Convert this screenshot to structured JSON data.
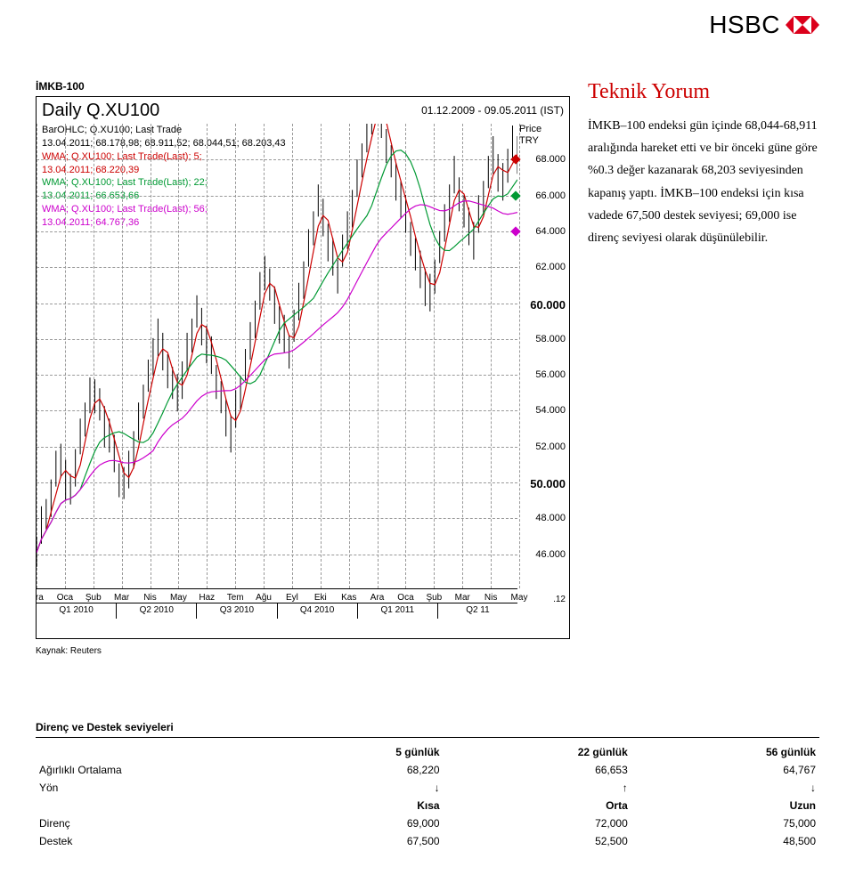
{
  "brand": {
    "name": "HSBC",
    "text_color": "#000000",
    "hex_border": "#db001b",
    "hex_fill": "#db001b"
  },
  "section_header": "İMKB-100",
  "chart": {
    "title": "Daily Q.XU100",
    "date_range": "01.12.2009 - 09.05.2011 (IST)",
    "legend": [
      {
        "color": "#000000",
        "l1": "BarOHLC; Q.XU100; Last Trade",
        "l2": "13.04.2011; 68.178,98; 68.911,52; 68.044,51; 68.203,43"
      },
      {
        "color": "#cc0000",
        "l1": "WMA; Q.XU100; Last Trade(Last);  5;",
        "l2": "13.04.2011; 68.220,39"
      },
      {
        "color": "#009933",
        "l1": "WMA; Q.XU100; Last Trade(Last);  22;",
        "l2": "13.04.2011; 66.653,66"
      },
      {
        "color": "#cc00cc",
        "l1": "WMA; Q.XU100; Last Trade(Last);  56;",
        "l2": "13.04.2011; 64.767,36"
      }
    ],
    "yaxis_label_1": "Price",
    "yaxis_label_2": "TRY",
    "ylim": [
      44000,
      70000
    ],
    "yticks": [
      {
        "v": 68000,
        "label": "68.000",
        "mark": "#cc0000"
      },
      {
        "v": 66000,
        "label": "66.000",
        "mark": "#009933"
      },
      {
        "v": 64000,
        "label": "64.000",
        "mark": "#cc00cc"
      },
      {
        "v": 62000,
        "label": "62.000"
      },
      {
        "v": 60000,
        "label": "60.000",
        "bold": true
      },
      {
        "v": 58000,
        "label": "58.000"
      },
      {
        "v": 56000,
        "label": "56.000"
      },
      {
        "v": 54000,
        "label": "54.000"
      },
      {
        "v": 52000,
        "label": "52.000"
      },
      {
        "v": 50000,
        "label": "50.000",
        "bold": true
      },
      {
        "v": 48000,
        "label": "48.000"
      },
      {
        "v": 46000,
        "label": "46.000"
      }
    ],
    "footer_mark": ".12",
    "months": [
      "Ara",
      "Oca",
      "Şub",
      "Mar",
      "Nis",
      "May",
      "Haz",
      "Tem",
      "Ağu",
      "Eyl",
      "Eki",
      "Kas",
      "Ara",
      "Oca",
      "Şub",
      "Mar",
      "Nis",
      "May"
    ],
    "quarters": [
      "Q1 2010",
      "Q2 2010",
      "Q3 2010",
      "Q4 2010",
      "Q1 2011",
      "Q2 11"
    ],
    "ohlc_color": "#000000",
    "wma5_color": "#cc0000",
    "wma22_color": "#009933",
    "wma56_color": "#cc00cc",
    "grid_color": "#999999",
    "series": {
      "close": [
        46000,
        47500,
        48200,
        49100,
        50500,
        51200,
        50100,
        49600,
        50800,
        52300,
        53500,
        54700,
        54900,
        54200,
        53100,
        52600,
        51400,
        50200,
        49800,
        50600,
        51900,
        53200,
        54600,
        55800,
        56900,
        58200,
        57100,
        56300,
        55400,
        54900,
        55800,
        57100,
        58300,
        59400,
        58600,
        57800,
        56900,
        55700,
        54600,
        53500,
        52800,
        53900,
        55100,
        56400,
        57800,
        59200,
        60500,
        61800,
        60900,
        59800,
        58900,
        58100,
        57400,
        58600,
        60000,
        61400,
        62900,
        64300,
        65600,
        64700,
        63500,
        62400,
        61600,
        62800,
        64000,
        65400,
        66800,
        68100,
        69200,
        70400,
        71300,
        70100,
        68900,
        67800,
        66700,
        65900,
        64800,
        63700,
        62600,
        61800,
        61000,
        60400,
        61600,
        63000,
        64400,
        65700,
        67000,
        66200,
        65000,
        64200,
        63600,
        64800,
        66000,
        67200,
        68200,
        67400,
        66600,
        67800,
        68900,
        68200
      ],
      "high_off": [
        900,
        1100,
        800,
        1000,
        1200,
        900,
        1100,
        800,
        1000,
        1200,
        900,
        1100,
        800,
        1000,
        1100,
        900,
        1200,
        800,
        1000,
        1100,
        900,
        1200,
        800,
        1000,
        1100,
        900,
        1200,
        800,
        1000,
        1100,
        900,
        1200,
        800,
        1000,
        1100,
        900,
        1200,
        800,
        1000,
        1100,
        900,
        1200,
        800,
        1000,
        1100,
        900,
        1200,
        800,
        1000,
        1100,
        900,
        1200,
        800,
        1000,
        1100,
        900,
        1200,
        800,
        1000,
        1100,
        900,
        1200,
        800,
        1000,
        1100,
        900,
        1200,
        800,
        1000,
        1100,
        900,
        1200,
        800,
        1000,
        1100,
        900,
        1200,
        800,
        1000,
        1100,
        900,
        1200,
        800,
        1000,
        1100,
        900,
        1200,
        800,
        1000,
        1100,
        900,
        1200,
        800,
        1000,
        1100,
        900,
        1200,
        800,
        1000,
        1100
      ],
      "low_off": [
        800,
        1000,
        900,
        1100,
        800,
        1000,
        1200,
        900,
        1100,
        800,
        1000,
        900,
        1100,
        800,
        1200,
        1000,
        900,
        1100,
        800,
        1000,
        1200,
        900,
        1100,
        800,
        1000,
        1200,
        900,
        1100,
        800,
        1000,
        1200,
        900,
        1100,
        800,
        1000,
        1200,
        900,
        1100,
        800,
        1000,
        1200,
        900,
        1100,
        800,
        1000,
        1200,
        900,
        1100,
        800,
        1000,
        1200,
        900,
        1100,
        800,
        1000,
        1200,
        900,
        1100,
        800,
        1000,
        1200,
        900,
        1100,
        800,
        1000,
        1200,
        900,
        1100,
        800,
        1000,
        1200,
        900,
        1100,
        800,
        1000,
        1200,
        900,
        1100,
        800,
        1000,
        1200,
        900,
        1100,
        800,
        1000,
        1200,
        900,
        1100,
        800,
        1000,
        1200,
        900,
        1100,
        800,
        1000,
        1200,
        900,
        1100,
        800,
        1000
      ]
    }
  },
  "source": "Kaynak: Reuters",
  "commentary": {
    "title": "Teknik Yorum",
    "body": "İMKB–100 endeksi gün içinde 68,044-68,911 aralığında hareket etti ve bir önceki güne göre %0.3 değer kazanarak 68,203 seviyesinden kapanış yaptı. İMKB–100 endeksi için kısa vadede 67,500 destek seviyesi; 69,000 ise direnç seviyesi olarak düşünülebilir."
  },
  "table": {
    "title": "Direnç ve Destek seviyeleri",
    "cols1": [
      "5 günlük",
      "22 günlük",
      "56 günlük"
    ],
    "rows1": [
      {
        "label": "Ağırlıklı Ortalama",
        "v": [
          "68,220",
          "66,653",
          "64,767"
        ]
      },
      {
        "label": "Yön",
        "v": [
          "↓",
          "↑",
          "↓"
        ]
      }
    ],
    "cols2": [
      "Kısa",
      "Orta",
      "Uzun"
    ],
    "rows2": [
      {
        "label": "Direnç",
        "v": [
          "69,000",
          "72,000",
          "75,000"
        ]
      },
      {
        "label": "Destek",
        "v": [
          "67,500",
          "52,500",
          "48,500"
        ]
      }
    ]
  }
}
